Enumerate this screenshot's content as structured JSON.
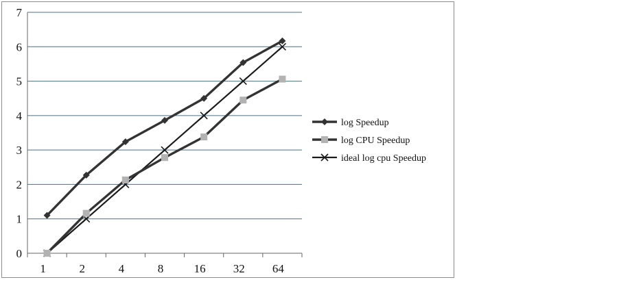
{
  "chart_data": {
    "type": "line",
    "categories": [
      "1",
      "2",
      "4",
      "8",
      "16",
      "32",
      "64"
    ],
    "ylim": [
      0,
      7
    ],
    "yticks": [
      0,
      1,
      2,
      3,
      4,
      5,
      6,
      7
    ],
    "grid": true,
    "legend_position": "right",
    "series": [
      {
        "name": "log Speedup",
        "marker": "diamond",
        "color": "#333333",
        "values": [
          1.1,
          2.27,
          3.24,
          3.86,
          4.5,
          5.54,
          6.17
        ]
      },
      {
        "name": "log CPU Speedup",
        "marker": "square",
        "color": "#333333",
        "marker_color": "#b3b3b3",
        "values": [
          0,
          1.16,
          2.13,
          2.78,
          3.38,
          4.45,
          5.06
        ]
      },
      {
        "name": "ideal log cpu Speedup",
        "marker": "x",
        "color": "#1a1a1a",
        "values": [
          0,
          1,
          2,
          3,
          4,
          5,
          6
        ]
      }
    ]
  }
}
